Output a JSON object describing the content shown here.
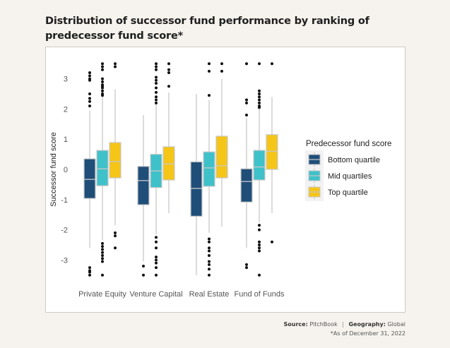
{
  "chart_data": {
    "type": "boxplot",
    "title": "Distribution of successor fund performance by ranking of predecessor fund score*",
    "xlabel": "",
    "ylabel": "Successor fund score",
    "ylim": [
      -3.5,
      3.5
    ],
    "yticks": [
      3,
      2,
      1,
      0,
      -1,
      -2,
      -3
    ],
    "grid": false,
    "categories": [
      "Private Equity",
      "Venture Capital",
      "Real Estate",
      "Fund of Funds"
    ],
    "legend": {
      "title": "Predecessor fund score",
      "placement": "right"
    },
    "series": [
      {
        "name": "Bottom quartile",
        "color": "#1f4e79",
        "boxes": [
          {
            "whisker_high": 1.95,
            "q3": 0.35,
            "median": -0.33,
            "q1": -0.96,
            "whisker_low": -2.6,
            "outliers": [
              3.2,
              3.1,
              3.0,
              2.95,
              2.5,
              2.35,
              2.25,
              2.1,
              -3.25,
              -3.35,
              -3.4,
              -3.5
            ]
          },
          {
            "whisker_high": 1.8,
            "q3": 0.1,
            "median": -0.37,
            "q1": -1.17,
            "whisker_low": -3.05,
            "outliers": [
              -3.2,
              -3.5
            ]
          },
          {
            "whisker_high": 2.5,
            "q3": 0.25,
            "median": -0.63,
            "q1": -1.55,
            "whisker_low": -3.5,
            "outliers": []
          },
          {
            "whisker_high": 1.7,
            "q3": 0.02,
            "median": -0.4,
            "q1": -1.08,
            "whisker_low": -2.6,
            "outliers": [
              3.5,
              2.3,
              2.2,
              1.8,
              -3.15,
              -3.25
            ]
          }
        ]
      },
      {
        "name": "Mid quartiles",
        "color": "#3fc1c9",
        "boxes": [
          {
            "whisker_high": 2.65,
            "q3": 0.63,
            "median": 0.02,
            "q1": -0.54,
            "whisker_low": -2.35,
            "outliers": [
              3.5,
              3.4,
              3.3,
              3.0,
              2.9,
              2.8,
              2.75,
              2.7,
              2.6,
              2.5,
              2.45,
              -2.45,
              -2.55,
              -2.65,
              -2.75,
              -2.85,
              -2.95,
              -3.05,
              -3.5
            ]
          },
          {
            "whisker_high": 2.2,
            "q3": 0.5,
            "median": -0.05,
            "q1": -0.6,
            "whisker_low": -2.15,
            "outliers": [
              3.5,
              3.4,
              3.3,
              3.05,
              2.95,
              2.85,
              2.7,
              2.55,
              2.4,
              2.3,
              2.2,
              -2.25,
              -2.4,
              -2.6,
              -2.9,
              -3.0,
              -3.1,
              -3.25,
              -3.5
            ]
          },
          {
            "whisker_high": 2.3,
            "q3": 0.58,
            "median": 0.05,
            "q1": -0.56,
            "whisker_low": -2.1,
            "outliers": [
              3.5,
              3.25,
              2.45,
              -2.3,
              -2.4,
              -2.6,
              -2.7,
              -2.85,
              -3.05,
              -3.15,
              -3.3,
              -3.5
            ]
          },
          {
            "whisker_high": 2.0,
            "q3": 0.63,
            "median": 0.08,
            "q1": -0.35,
            "whisker_low": -1.75,
            "outliers": [
              3.5,
              2.6,
              2.5,
              2.4,
              2.3,
              2.2,
              2.1,
              2.05,
              -1.85,
              -2.0,
              -2.4,
              -2.5,
              -2.6,
              -2.7,
              -3.5
            ]
          }
        ]
      },
      {
        "name": "Top quartile",
        "color": "#f5c518",
        "boxes": [
          {
            "whisker_high": 2.65,
            "q3": 0.89,
            "median": 0.26,
            "q1": -0.28,
            "whisker_low": -1.85,
            "outliers": [
              3.5,
              3.4,
              -2.1,
              -2.2,
              -2.6
            ]
          },
          {
            "whisker_high": 2.55,
            "q3": 0.75,
            "median": 0.18,
            "q1": -0.35,
            "whisker_low": -1.45,
            "outliers": [
              3.5,
              3.3,
              3.2,
              2.75
            ]
          },
          {
            "whisker_high": 3.0,
            "q3": 1.1,
            "median": 0.12,
            "q1": -0.28,
            "whisker_low": -1.9,
            "outliers": [
              3.5,
              3.25
            ]
          },
          {
            "whisker_high": 2.4,
            "q3": 1.15,
            "median": 0.6,
            "q1": 0.0,
            "whisker_low": -1.45,
            "outliers": [
              3.5,
              -2.4
            ]
          }
        ]
      }
    ]
  },
  "footer": {
    "source_label": "Source:",
    "source_value": "PitchBook",
    "separator": "|",
    "geography_label": "Geography:",
    "geography_value": "Global",
    "note": "*As of December 31, 2022"
  }
}
